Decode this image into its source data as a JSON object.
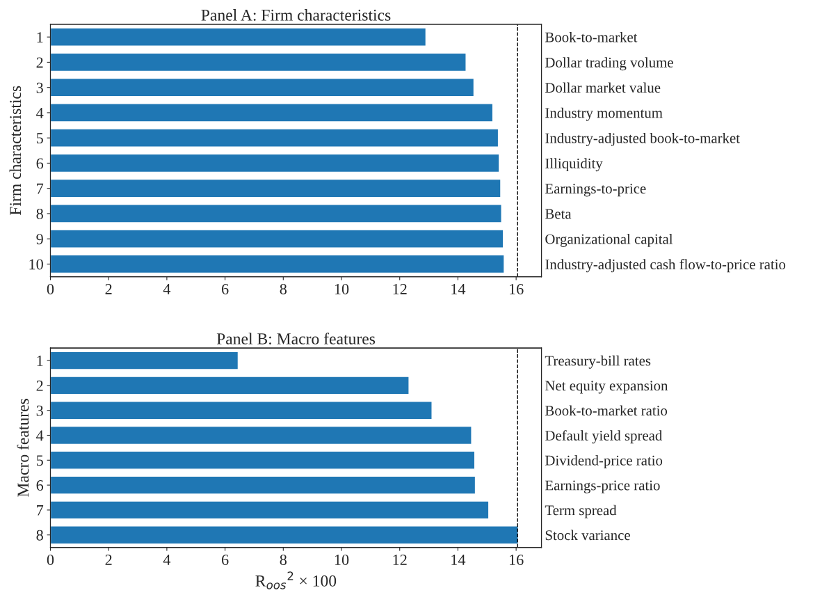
{
  "chart_data": [
    {
      "type": "bar",
      "orientation": "horizontal",
      "title": "Panel A: Firm characteristics",
      "ylabel": "Firm characteristics",
      "categories": [
        "1",
        "2",
        "3",
        "4",
        "5",
        "6",
        "7",
        "8",
        "9",
        "10"
      ],
      "y2_categories": [
        "Book-to-market",
        "Dollar trading volume",
        "Dollar market value",
        "Industry momentum",
        "Industry-adjusted book-to-market",
        "Illiquidity",
        "Earnings-to-price",
        "Beta",
        "Organizational capital",
        "Industry-adjusted cash flow-to-price ratio"
      ],
      "values": [
        12.9,
        14.28,
        14.55,
        15.2,
        15.39,
        15.42,
        15.47,
        15.5,
        15.56,
        15.59
      ],
      "color": "#1f77b4",
      "xlim": [
        0,
        16.87
      ],
      "xticks": [
        0,
        2,
        4,
        6,
        8,
        10,
        12,
        14,
        16
      ],
      "grid": false,
      "legend": false,
      "ref_lines": [
        {
          "axis": "x",
          "value": 16.05,
          "color": "#000000",
          "line_style": "dashed"
        }
      ]
    },
    {
      "type": "bar",
      "orientation": "horizontal",
      "title": "Panel B: Macro features",
      "ylabel": "Macro features",
      "xlabel": "R$_{oos}$$^{2}$ × 100",
      "categories": [
        "1",
        "2",
        "3",
        "4",
        "5",
        "6",
        "7",
        "8"
      ],
      "y2_categories": [
        "Treasury-bill rates",
        "Net equity expansion",
        "Book-to-market ratio",
        "Default yield spread",
        "Dividend-price ratio",
        "Earnings-price ratio",
        "Term spread",
        "Stock variance"
      ],
      "values": [
        6.45,
        12.32,
        13.11,
        14.47,
        14.58,
        14.6,
        15.06,
        16.07
      ],
      "color": "#1f77b4",
      "xlim": [
        0,
        16.87
      ],
      "xticks": [
        0,
        2,
        4,
        6,
        8,
        10,
        12,
        14,
        16
      ],
      "grid": false,
      "legend": false,
      "ref_lines": [
        {
          "axis": "x",
          "value": 16.05,
          "color": "#000000",
          "line_style": "dashed"
        }
      ]
    }
  ]
}
